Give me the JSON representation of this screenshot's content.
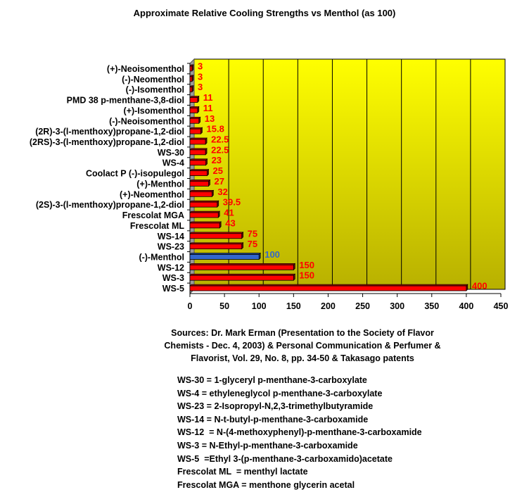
{
  "chart_data": {
    "type": "bar",
    "orientation": "horizontal",
    "title": "Approximate Relative Cooling Strengths vs Menthol (as 100)",
    "categories": [
      "(+)-Neoisomenthol",
      "(-)-Neomenthol",
      "(-)-Isomenthol",
      "PMD 38 p-menthane-3,8-diol",
      "(+)-Isomenthol",
      "(-)-Neoisomenthol",
      "(2R)-3-(l-menthoxy)propane-1,2-diol",
      "(2RS)-3-(l-menthoxy)propane-1,2-diol",
      "WS-30",
      "WS-4",
      "Coolact P  (-)-isopulegol",
      "(+)-Menthol",
      "(+)-Neomenthol",
      "(2S)-3-(l-menthoxy)propane-1,2-diol",
      "Frescolat MGA",
      "Frescolat ML",
      "WS-14",
      "WS-23",
      "(-)-Menthol",
      "WS-12",
      "WS-3",
      "WS-5"
    ],
    "values": [
      3,
      3,
      3,
      11,
      11,
      13,
      15.8,
      22.5,
      22.5,
      23,
      25,
      27,
      32,
      39.5,
      41,
      43,
      75,
      75,
      100,
      150,
      150,
      400
    ],
    "data_labels": [
      "3",
      "3",
      "3",
      "11",
      "11",
      "13",
      "15.8",
      "22.5",
      "22.5",
      "23",
      "25",
      "27",
      "32",
      "39.5",
      "41",
      "43",
      "75",
      "75",
      "100",
      "150",
      "150",
      "400"
    ],
    "highlight_category": "(-)-Menthol",
    "xlim": [
      0,
      450
    ],
    "xticks": [
      "0",
      "50",
      "100",
      "150",
      "200",
      "250",
      "300",
      "350",
      "400",
      "450"
    ],
    "grid": "vertical",
    "colors": {
      "bar": "#ff0000",
      "highlight": "#3366cc",
      "label": "#ff0000",
      "highlight_label": "#3366cc",
      "background_top": "#ffff00",
      "background_bottom": "#b8b000",
      "wall": "#999999"
    }
  },
  "sources": [
    "Sources: Dr. Mark Erman (Presentation to the Society of Flavor",
    "Chemists - Dec. 4, 2003) & Personal Communication & Perfumer &",
    "Flavorist, Vol. 29, No. 8, pp. 34-50 & Takasago patents"
  ],
  "definitions": [
    "WS-30 = 1-glyceryl p-menthane-3-carboxylate",
    "WS-4 = ethyleneglycol p-menthane-3-carboxylate",
    "WS-23 = 2-Isopropyl-N,2,3-trimethylbutyramide",
    "WS-14 = N-t-butyl-p-menthane-3-carboxamide",
    "WS-12  = N-(4-methoxyphenyl)-p-menthane-3-carboxamide",
    "WS-3 = N-Ethyl-p-menthane-3-carboxamide",
    "WS-5  =Ethyl 3-(p-menthane-3-carboxamido)acetate",
    "Frescolat ML  = menthyl lactate",
    "Frescolat MGA = menthone glycerin acetal"
  ]
}
